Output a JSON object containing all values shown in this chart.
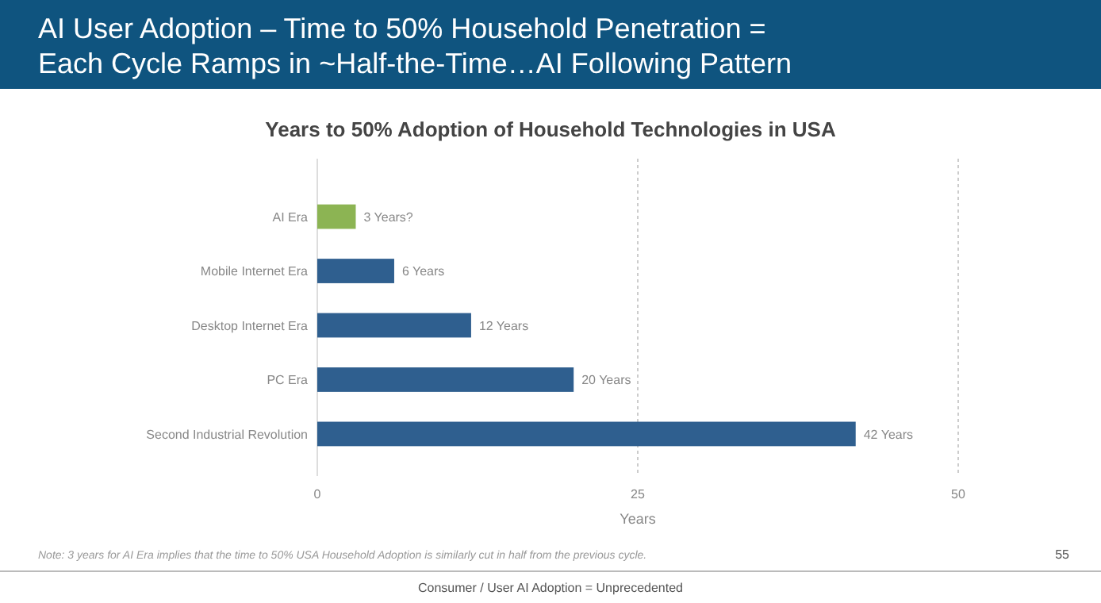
{
  "chart_data": {
    "type": "bar",
    "orientation": "horizontal",
    "title": "AI User Adoption – Time to 50% Household Penetration = Each Cycle Ramps in ~Half-the-Time…AI Following Pattern",
    "subtitle": "Years to 50% Adoption of Household Technologies in USA",
    "categories": [
      "AI Era",
      "Mobile Internet Era",
      "Desktop Internet Era",
      "PC Era",
      "Second Industrial Revolution"
    ],
    "values": [
      3,
      6,
      12,
      20,
      42
    ],
    "colors": [
      "#8cb453",
      "#2f5f8f",
      "#2f5f8f",
      "#2f5f8f",
      "#2f5f8f"
    ],
    "value_labels": [
      "3 Years?",
      "6 Years",
      "12 Years",
      "20 Years",
      "42 Years"
    ],
    "xlim": [
      0,
      50
    ],
    "xticks": [
      0,
      25,
      50
    ],
    "xlabel": "Years",
    "grid": "x",
    "annotations": [
      "Note: 3 years for AI Era implies that the time to 50% USA Household Adoption is similarly cut in half from the previous cycle.",
      "Consumer / User AI Adoption = Unprecedented",
      "55"
    ]
  }
}
